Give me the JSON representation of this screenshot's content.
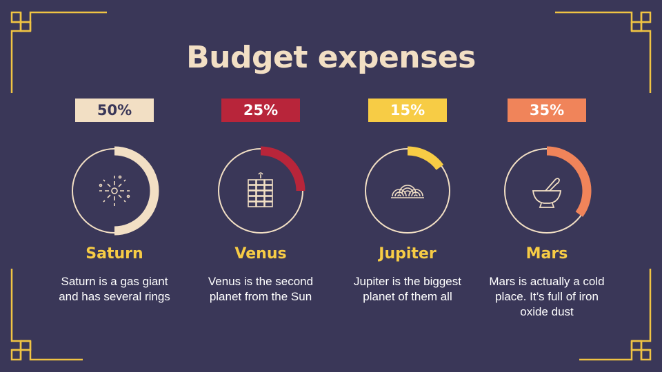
{
  "title": "Budget expenses",
  "colors": {
    "background": "#3a3758",
    "frame_gold": "#f0c443",
    "ring_outline": "#f2dfc4",
    "name_yellow": "#f7cc45"
  },
  "items": [
    {
      "percent": "50%",
      "value": 0.5,
      "color": "#f2dfc4",
      "text_color": "#3a3758",
      "name": "Saturn",
      "description": "Saturn is a gas giant and has several rings",
      "icon": "fireworks-icon"
    },
    {
      "percent": "25%",
      "value": 0.25,
      "color": "#b8253a",
      "text_color": "#ffffff",
      "name": "Venus",
      "description": "Venus is the second planet from the Sun",
      "icon": "firecracker-icon"
    },
    {
      "percent": "15%",
      "value": 0.15,
      "color": "#f7cc45",
      "text_color": "#ffffff",
      "name": "Jupiter",
      "description": "Jupiter is the biggest planet of them all",
      "icon": "noodles-icon"
    },
    {
      "percent": "35%",
      "value": 0.35,
      "color": "#f0845a",
      "text_color": "#ffffff",
      "name": "Mars",
      "description": "Mars is actually a cold place. It’s full of iron oxide dust",
      "icon": "mortar-pestle-icon"
    }
  ]
}
